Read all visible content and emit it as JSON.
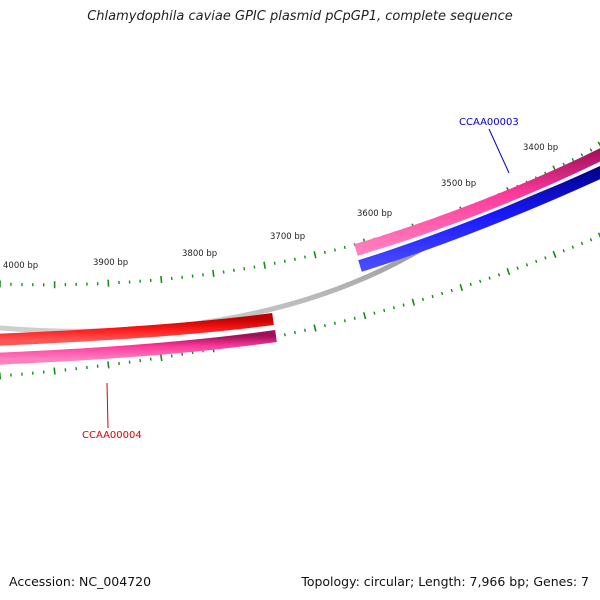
{
  "title": "Chlamydophila caviae GPIC plasmid pCpGP1, complete sequence",
  "accession": "Accession: NC_004720",
  "summary": "Topology: circular; Length: 7,966 bp; Genes: 7",
  "tick_labels": [
    "4000 bp",
    "3900 bp",
    "3800 bp",
    "3700 bp",
    "3600 bp",
    "3500 bp",
    "3400 bp"
  ],
  "genes": [
    {
      "name": "CCAA00003",
      "color": "#0000cc"
    },
    {
      "name": "CCAA00004",
      "color": "#dd0000"
    }
  ],
  "colors": {
    "backbone": "#888888",
    "cds_forward": "#e8157e",
    "cds_reverse": "#ee1111",
    "gene_blue": "#1010ee",
    "ticks": "#1a8a1a"
  }
}
